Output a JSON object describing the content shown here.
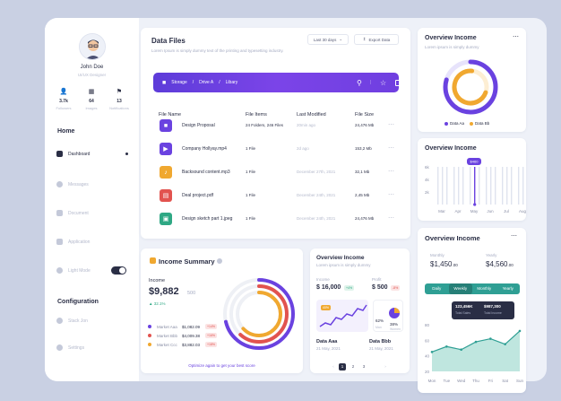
{
  "profile": {
    "name": "John Doe",
    "role": "UI/UX Designer",
    "stats": [
      {
        "value": "3.7k",
        "label": "Followers"
      },
      {
        "value": "64",
        "label": "Images"
      },
      {
        "value": "13",
        "label": "Notifications"
      }
    ]
  },
  "nav": {
    "home_heading": "Home",
    "items": [
      "Dashboard",
      "Messages",
      "Document",
      "Application",
      "Light Mode"
    ],
    "config_heading": "Configuration",
    "config_items": [
      "Stack Jon",
      "Settings"
    ]
  },
  "data_files": {
    "title": "Data Files",
    "subtitle": "Lorem Ipsum is simply dummy text of the printing and typesetting industry.",
    "range_label": "Last 30 days",
    "export_label": "Export Data",
    "path": [
      "Storage",
      "Drive A",
      "Libary"
    ],
    "columns": [
      "File Name",
      "File Items",
      "Last Modified",
      "File Size"
    ],
    "rows": [
      {
        "name": "Design Proposal",
        "items": "24 Folders, 246 Files",
        "modified": "20min ago",
        "size": "24,476 Mb",
        "color": "#6a42e0",
        "icon": "folder-icon"
      },
      {
        "name": "Company Hollyay.mp4",
        "items": "1 File",
        "modified": "2d ago",
        "size": "153,2 Mb",
        "color": "#6a42e0",
        "icon": "video-icon"
      },
      {
        "name": "Backsound content.mp3",
        "items": "1 File",
        "modified": "December 27th, 2021",
        "size": "32,1 Mb",
        "color": "#f0a830",
        "icon": "music-icon"
      },
      {
        "name": "Deal project.pdf",
        "items": "1 File",
        "modified": "December 24th, 2021",
        "size": "2,45 Mb",
        "color": "#e2534f",
        "icon": "pdf-icon"
      },
      {
        "name": "Design sketch part 1.jpeg",
        "items": "1 File",
        "modified": "December 24th, 2021",
        "size": "24,476 Mb",
        "color": "#2fa884",
        "icon": "image-icon"
      }
    ]
  },
  "overview_top": {
    "title": "Overview Income",
    "subtitle": "Lorem ipsum is simply dummy",
    "legend": [
      {
        "label": "Data Aa",
        "color": "#6a42e0"
      },
      {
        "label": "Data Bb",
        "color": "#f0a830"
      }
    ]
  },
  "overview_bar": {
    "title": "Overview Income",
    "tooltip": "$460",
    "chart_data": {
      "type": "bar",
      "categories": [
        "Mar",
        "Apr",
        "May",
        "Jun",
        "Jul",
        "Aug"
      ],
      "yticks": [
        "6k",
        "4k",
        "2k"
      ],
      "highlight": "May"
    }
  },
  "income_summary": {
    "title": "Income Summary",
    "income_label": "Income",
    "amount": "$9,882",
    "amount_suffix": "500",
    "change": "32.1%",
    "markets": [
      {
        "name": "Market Aaa",
        "value": "$1,082.09",
        "badge": "+14%"
      },
      {
        "name": "Market Bbb",
        "value": "$4,009.38",
        "badge": "+16%"
      },
      {
        "name": "Market Ccc",
        "value": "$3,882.03",
        "badge": "+18%"
      }
    ],
    "footer": "Optimize again to get your best score"
  },
  "overview_mid": {
    "title": "Overview Income",
    "subtitle": "Lorem ipsum is simply dummy",
    "left_label": "Income",
    "left_value": "$ 16,000",
    "left_badge": "+4%",
    "right_label": "Profit",
    "right_value": "$ 500",
    "right_badge": "-8%",
    "chart_label": "40%",
    "pct_a": "62%",
    "pct_b": "38%",
    "pct_a_label": "Man",
    "pct_b_label": "Women",
    "data_a": "Data Aaa",
    "date_a": "21 May, 2021",
    "data_b": "Data Bbb",
    "date_b": "21 May, 2021",
    "pages": [
      "1",
      "2",
      "3"
    ]
  },
  "overview_right": {
    "title": "Overview Income",
    "monthly_label": "Monthly",
    "monthly_value": "$1,450",
    "monthly_cents": ".00",
    "yearly_label": "Yearly",
    "yearly_value": "$4,560",
    "yearly_cents": ".00",
    "tabs": [
      "Daily",
      "Weekly",
      "Monthly",
      "Yearly"
    ],
    "tip_a": "123,456K",
    "tip_a_label": "Total Sales",
    "tip_b": "$987,300",
    "tip_b_label": "Total Income",
    "yticks": [
      "80",
      "60",
      "40",
      "20"
    ],
    "chart_data": {
      "type": "area",
      "categories": [
        "Mon",
        "Tue",
        "Wed",
        "Thu",
        "Fri",
        "Sat",
        "Sun"
      ],
      "values": [
        45,
        52,
        48,
        58,
        62,
        55,
        72
      ]
    }
  }
}
